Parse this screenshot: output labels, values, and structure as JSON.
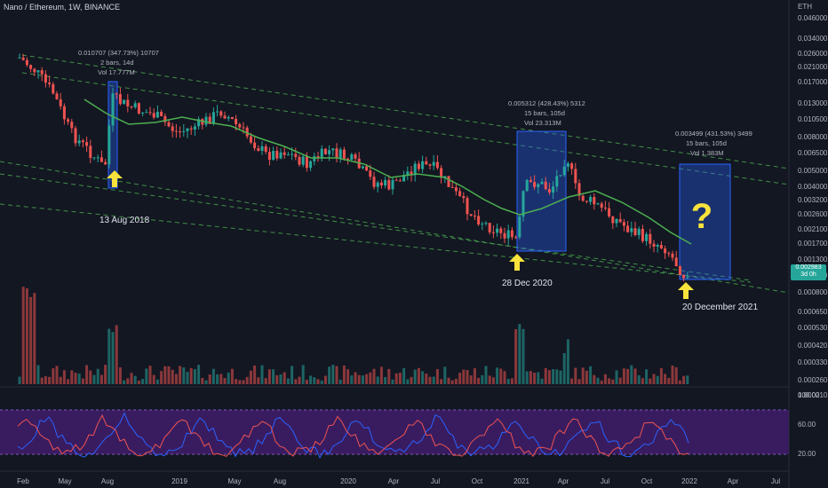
{
  "title": "Nano / Ethereum, 1W, BINANCE",
  "axis": {
    "unit": "ETH",
    "price_ticks": [
      "0.046000",
      "0.034000",
      "0.026000",
      "0.021000",
      "0.017000",
      "0.013000",
      "0.010500",
      "0.008000",
      "0.006500",
      "0.005000",
      "0.004000",
      "0.003200",
      "0.002600",
      "0.002100",
      "0.001700",
      "0.001300",
      "0.001050",
      "0.000800",
      "0.000650",
      "0.000530",
      "0.000420",
      "0.000330",
      "0.000260",
      "0.000210"
    ],
    "rsi_ticks": [
      "100.00",
      "60.00",
      "20.00"
    ],
    "time_ticks": [
      "Feb",
      "May",
      "Aug",
      "2019",
      "May",
      "Aug",
      "2020",
      "Apr",
      "Jul",
      "Oct",
      "2021",
      "Apr",
      "Jul",
      "Oct",
      "2022",
      "Apr",
      "Jul"
    ]
  },
  "last_price": {
    "value": "0.002983",
    "countdown": "3d 0h"
  },
  "annotations": {
    "box1": {
      "line1": "0.010707 (347.73%) 10707",
      "line2": "2 bars, 14d",
      "line3": "Vol 17.777M"
    },
    "box2": {
      "line1": "0.005312 (428.43%) 5312",
      "line2": "15 bars, 105d",
      "line3": "Vol 23.313M"
    },
    "box3": {
      "line1": "0.003499 (431.53%) 3499",
      "line2": "15 bars, 105d",
      "line3": "Vol 1.383M"
    },
    "date1": "13 Aug 2018",
    "date2": "28 Dec 2020",
    "date3": "20 December 2021",
    "question": "?"
  },
  "colors": {
    "up": "#26a69a",
    "down": "#ef5350",
    "ma": "#4caf50",
    "channel": "#4caf50",
    "box": "#2962ff",
    "arrow": "#f7e33c",
    "rsi_band": "#4a1f7a"
  }
}
